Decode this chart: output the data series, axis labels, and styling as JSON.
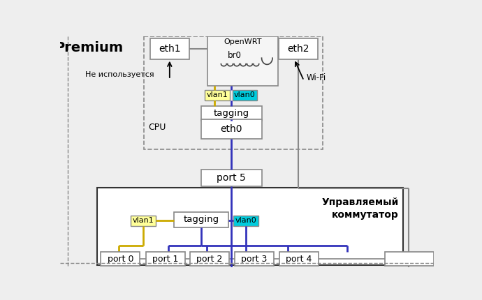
{
  "bg_color": "#eeeeee",
  "white": "#ffffff",
  "yellow_fill": "#ffff99",
  "cyan_fill": "#00ccdd",
  "blue_line": "#3333bb",
  "yellow_line": "#ccaa00",
  "black": "#000000",
  "gray_border": "#888888",
  "dark_border": "#333333",
  "label_ne_ispolzuetsya": "Не используется",
  "label_wifi": "Wi-Fi",
  "label_cpu": "CPU",
  "label_upravl": "Управляемый\nкоммутатор"
}
